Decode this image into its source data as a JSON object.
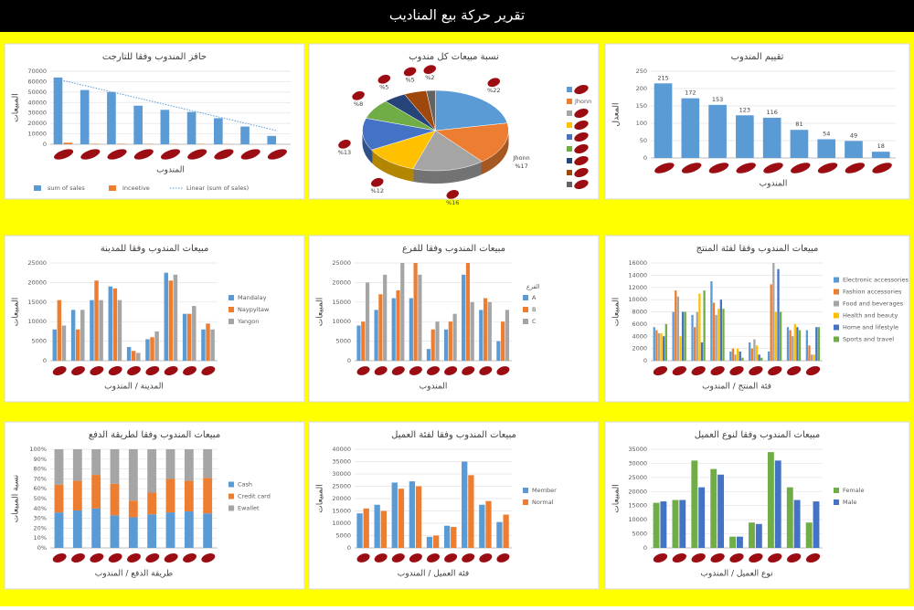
{
  "header": {
    "title": "تقرير حركة بيع المناديب"
  },
  "chart_data": [
    {
      "type": "bar",
      "title": "حافز المندوب وفقا للتارجت",
      "y_label": "المبيعات",
      "x_label": "المندوب",
      "categories": [
        null,
        null,
        null,
        null,
        null,
        null,
        null,
        null,
        null
      ],
      "series": [
        {
          "name": "sum of sales",
          "color": "#5b9bd5",
          "values": [
            64000,
            52000,
            50000,
            37000,
            33000,
            31000,
            25000,
            17000,
            8000
          ]
        },
        {
          "name": "Inceetive",
          "color": "#ed7d31",
          "values": [
            1500,
            400,
            400,
            300,
            300,
            300,
            200,
            100,
            100
          ]
        },
        {
          "name": "Linear (sum of sales)",
          "color": "#5b9bd5",
          "line": "dotted",
          "values": [
            61000,
            55000,
            49000,
            43000,
            37000,
            31000,
            25000,
            19000,
            13000
          ]
        }
      ],
      "ylim": [
        0,
        70000
      ],
      "yticks": [
        0,
        10000,
        20000,
        30000,
        40000,
        50000,
        60000,
        70000
      ],
      "grid": true,
      "legend": "bottom"
    },
    {
      "type": "pie",
      "title": "نسبة مبيعات كل مندوب",
      "categories": [
        null,
        "Jhonn",
        null,
        null,
        null,
        null,
        null,
        null,
        null
      ],
      "values": [
        22,
        17,
        16,
        12,
        13,
        8,
        5,
        5,
        2
      ],
      "value_labels": [
        "%22",
        "%17",
        "%16",
        "%12",
        "%13",
        "%8",
        "%5",
        "%5",
        "%2"
      ],
      "colors": [
        "#5b9bd5",
        "#ed7d31",
        "#a5a5a5",
        "#ffc000",
        "#4472c4",
        "#70ad47",
        "#264478",
        "#9e480e",
        "#636363"
      ],
      "legend": "right"
    },
    {
      "type": "bar",
      "title": "تقييم المندوب",
      "y_label": "المعدل",
      "x_label": "المندوب",
      "categories": [
        null,
        null,
        null,
        null,
        null,
        null,
        null,
        null,
        null
      ],
      "series": [
        {
          "color": "#5b9bd5",
          "values": [
            215,
            172,
            153,
            123,
            116,
            81,
            54,
            49,
            18
          ]
        }
      ],
      "ylim": [
        0,
        250
      ],
      "yticks": [
        0,
        50,
        100,
        150,
        200,
        250
      ],
      "grid": true,
      "data_labels": true,
      "legend": "none"
    },
    {
      "type": "bar",
      "title": "مبيعات المندوب وفقا للمدينة",
      "y_label": "المبيعات",
      "x_label": "المدينة / المندوب",
      "categories": [
        null,
        null,
        null,
        null,
        null,
        null,
        null,
        null,
        null
      ],
      "series": [
        {
          "name": "Mandalay",
          "color": "#5b9bd5",
          "values": [
            8000,
            13000,
            15500,
            19000,
            3500,
            5500,
            22500,
            12000,
            8000
          ]
        },
        {
          "name": "Naypyitaw",
          "color": "#ed7d31",
          "values": [
            15500,
            8000,
            20500,
            18500,
            2500,
            6000,
            20500,
            12000,
            9500
          ]
        },
        {
          "name": "Yangon",
          "color": "#a5a5a5",
          "values": [
            9000,
            13000,
            15500,
            15500,
            2000,
            7500,
            22000,
            14000,
            8000
          ]
        }
      ],
      "ylim": [
        0,
        25000
      ],
      "yticks": [
        0,
        5000,
        10000,
        15000,
        20000,
        25000
      ],
      "grid": true,
      "legend": "right"
    },
    {
      "type": "bar",
      "title": "مبيعات المندوب وفقا للفرع",
      "y_label": "المبيعات",
      "x_label": "المندوب",
      "legend_title": "الفرع",
      "categories": [
        null,
        null,
        null,
        null,
        null,
        null,
        null,
        null,
        null
      ],
      "series": [
        {
          "name": "A",
          "color": "#5b9bd5",
          "values": [
            9000,
            13000,
            16000,
            16000,
            3000,
            8000,
            22000,
            13000,
            5000
          ]
        },
        {
          "name": "B",
          "color": "#ed7d31",
          "values": [
            10000,
            17000,
            18000,
            25000,
            8000,
            10000,
            25000,
            16000,
            10000
          ]
        },
        {
          "name": "C",
          "color": "#a5a5a5",
          "values": [
            20000,
            22000,
            25000,
            22000,
            10000,
            12000,
            15000,
            15000,
            13000
          ]
        }
      ],
      "ylim": [
        0,
        25000
      ],
      "yticks": [
        0,
        5000,
        10000,
        15000,
        20000,
        25000
      ],
      "grid": true,
      "legend": "right"
    },
    {
      "type": "bar",
      "title": "مبيعات المندوب وفقا لفئة المنتج",
      "y_label": "المبيعات",
      "x_label": "فئة المنتج / المندوب",
      "categories": [
        null,
        null,
        null,
        null,
        null,
        null,
        null,
        null,
        null
      ],
      "series": [
        {
          "name": "Electronic accessories",
          "color": "#5b9bd5",
          "values": [
            5500,
            8000,
            7500,
            13000,
            1500,
            3000,
            1500,
            5500,
            5000
          ]
        },
        {
          "name": "Fashion accessories",
          "color": "#ed7d31",
          "values": [
            5000,
            11500,
            5500,
            9500,
            2000,
            2000,
            12500,
            5000,
            2500
          ]
        },
        {
          "name": "Food and beverages",
          "color": "#a5a5a5",
          "values": [
            4500,
            10500,
            8000,
            7500,
            1000,
            3500,
            16000,
            4000,
            1000
          ]
        },
        {
          "name": "Health and beauty",
          "color": "#ffc000",
          "values": [
            4500,
            4000,
            11000,
            8500,
            2000,
            2500,
            8000,
            6000,
            1000
          ]
        },
        {
          "name": "Home and lifestyle",
          "color": "#4472c4",
          "values": [
            4000,
            8000,
            3000,
            10000,
            1500,
            1000,
            15000,
            5500,
            5500
          ]
        },
        {
          "name": "Sports and travel",
          "color": "#70ad47",
          "values": [
            6000,
            8000,
            11500,
            8500,
            500,
            500,
            8000,
            5000,
            5500
          ]
        }
      ],
      "ylim": [
        0,
        16000
      ],
      "yticks": [
        0,
        2000,
        4000,
        6000,
        8000,
        10000,
        12000,
        14000,
        16000
      ],
      "grid": true,
      "legend": "right"
    },
    {
      "type": "stacked_percent",
      "title": "مبيعات المندوب وفقا لطريقة الدفع",
      "y_label": "نسبة المبيعات",
      "x_label": "طريقة الدفع / المندوب",
      "categories": [
        null,
        null,
        null,
        null,
        null,
        null,
        null,
        null,
        null
      ],
      "series": [
        {
          "name": "Cash",
          "color": "#5b9bd5",
          "values": [
            36,
            38,
            40,
            33,
            31,
            34,
            36,
            37,
            35
          ]
        },
        {
          "name": "Credit card",
          "color": "#ed7d31",
          "values": [
            28,
            30,
            34,
            32,
            17,
            22,
            34,
            31,
            36
          ]
        },
        {
          "name": "Ewallet",
          "color": "#a5a5a5",
          "values": [
            36,
            32,
            26,
            35,
            52,
            44,
            30,
            32,
            29
          ]
        }
      ],
      "ylim": [
        0,
        100
      ],
      "yticks": [
        {
          "value": 0,
          "label": "0%"
        },
        {
          "value": 10,
          "label": "10%"
        },
        {
          "value": 20,
          "label": "20%"
        },
        {
          "value": 30,
          "label": "30%"
        },
        {
          "value": 40,
          "label": "40%"
        },
        {
          "value": 50,
          "label": "50%"
        },
        {
          "value": 60,
          "label": "60%"
        },
        {
          "value": 70,
          "label": "70%"
        },
        {
          "value": 80,
          "label": "80%"
        },
        {
          "value": 90,
          "label": "90%"
        },
        {
          "value": 100,
          "label": "100%"
        }
      ],
      "grid": true,
      "legend": "right"
    },
    {
      "type": "bar",
      "title": "مبيعات المندوب وفقا لفئة العميل",
      "y_label": "المبيعات",
      "x_label": "فئة العميل / المندوب",
      "categories": [
        null,
        null,
        null,
        null,
        null,
        null,
        null,
        null,
        null
      ],
      "series": [
        {
          "name": "Member",
          "color": "#5b9bd5",
          "values": [
            14000,
            17500,
            26500,
            27000,
            4500,
            9000,
            35000,
            17500,
            10500
          ]
        },
        {
          "name": "Normal",
          "color": "#ed7d31",
          "values": [
            16000,
            15000,
            24000,
            25000,
            5000,
            8500,
            29500,
            19000,
            13500
          ]
        }
      ],
      "ylim": [
        0,
        40000
      ],
      "yticks": [
        0,
        5000,
        10000,
        15000,
        20000,
        25000,
        30000,
        35000,
        40000
      ],
      "grid": true,
      "legend": "right"
    },
    {
      "type": "bar",
      "title": "مبيعات المندوب وفقا لنوع العميل",
      "y_label": "المبيعات",
      "x_label": "نوع العميل / المندوب",
      "categories": [
        null,
        null,
        null,
        null,
        null,
        null,
        null,
        null,
        null
      ],
      "series": [
        {
          "name": "Female",
          "color": "#70ad47",
          "values": [
            16000,
            17000,
            31000,
            28000,
            4000,
            9000,
            34000,
            21500,
            9000
          ]
        },
        {
          "name": "Male",
          "color": "#4472c4",
          "values": [
            16500,
            17000,
            21500,
            26000,
            4000,
            8500,
            31000,
            17000,
            16500
          ]
        }
      ],
      "ylim": [
        0,
        35000
      ],
      "yticks": [
        0,
        5000,
        10000,
        15000,
        20000,
        25000,
        30000,
        35000
      ],
      "grid": true,
      "legend": "right"
    }
  ]
}
